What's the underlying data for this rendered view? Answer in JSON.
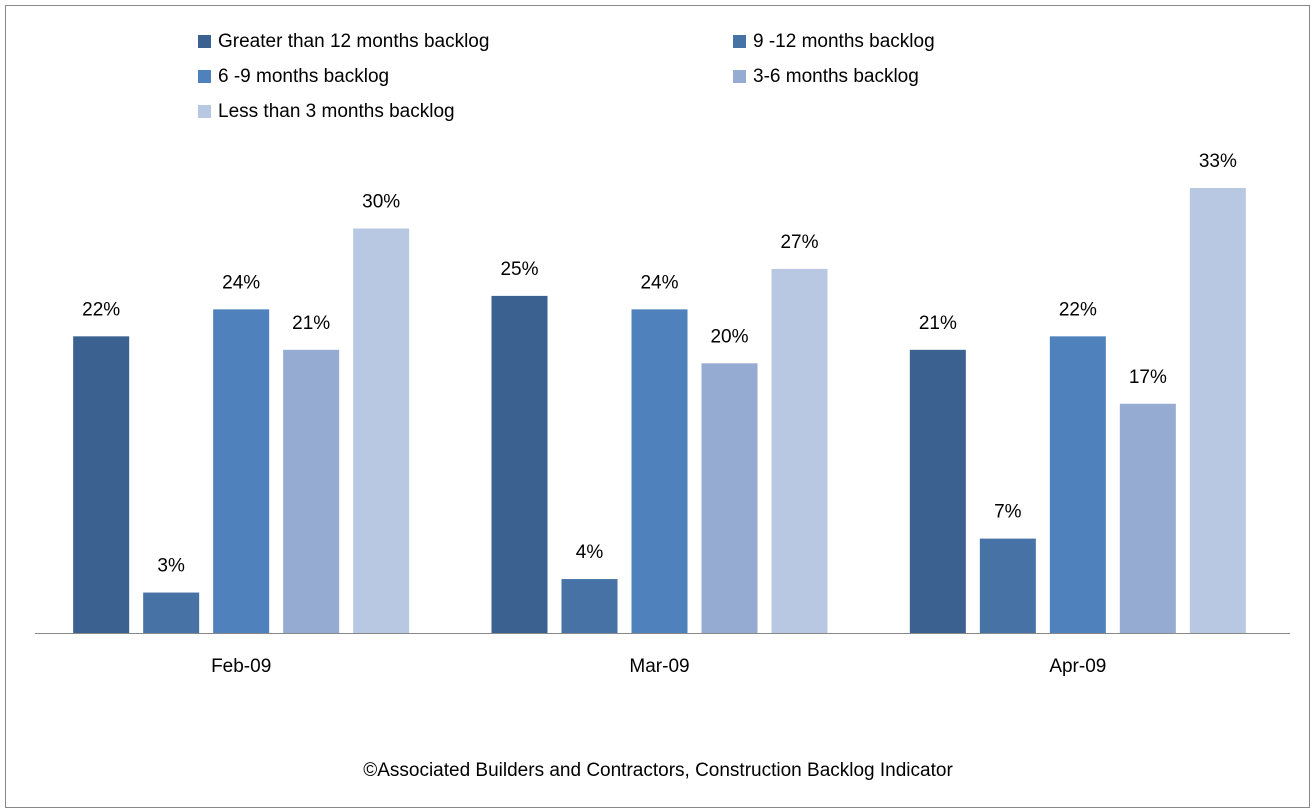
{
  "chart_data": {
    "type": "bar",
    "categories": [
      "Feb-09",
      "Mar-09",
      "Apr-09"
    ],
    "series": [
      {
        "name": "Greater than 12 months backlog",
        "color": "#3b6191",
        "values": [
          22,
          25,
          21
        ],
        "value_labels": [
          "22%",
          "25%",
          "21%"
        ]
      },
      {
        "name": "9 -12 months backlog",
        "color": "#4672a6",
        "values": [
          3,
          4,
          7
        ],
        "value_labels": [
          "3%",
          "4%",
          "7%"
        ]
      },
      {
        "name": "6 -9 months backlog",
        "color": "#4f81bd",
        "values": [
          24,
          24,
          22
        ],
        "value_labels": [
          "24%",
          "24%",
          "22%"
        ]
      },
      {
        "name": "3-6 months backlog",
        "color": "#95abd2",
        "values": [
          21,
          20,
          17
        ],
        "value_labels": [
          "21%",
          "20%",
          "17%"
        ]
      },
      {
        "name": "Less than 3 months backlog",
        "color": "#b9c8e2",
        "values": [
          30,
          27,
          33
        ],
        "value_labels": [
          "30%",
          "27%",
          "33%"
        ]
      }
    ],
    "note": "©Associated Builders and Contractors, Construction Backlog Indicator",
    "legend": "top"
  }
}
